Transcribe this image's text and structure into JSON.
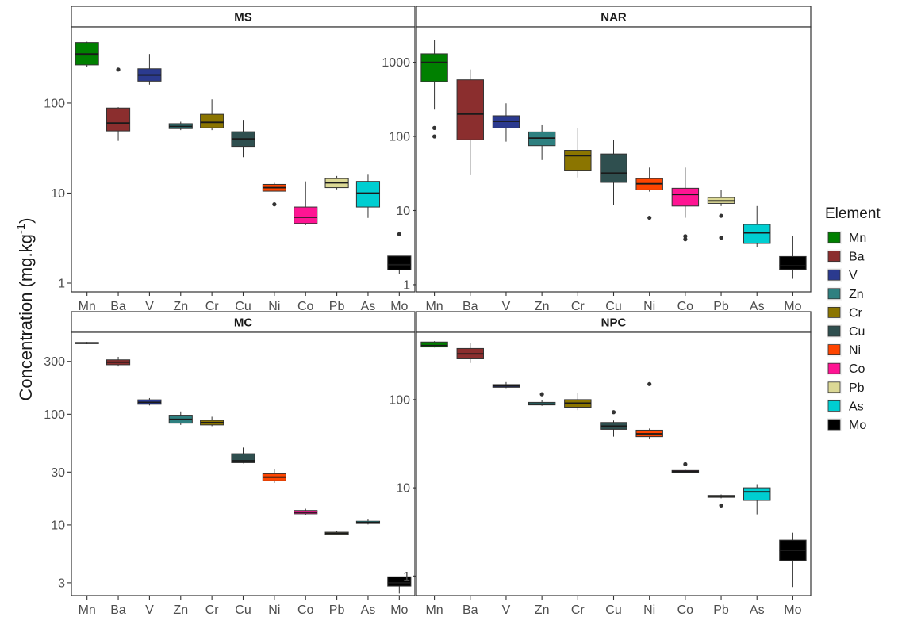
{
  "chart_data": {
    "type": "boxplot",
    "ylabel": {
      "main": "Concentration (mg.kg",
      "sup": "-1",
      "close": ")"
    },
    "yscale": "log10",
    "categories": [
      "Mn",
      "Ba",
      "V",
      "Zn",
      "Cr",
      "Cu",
      "Ni",
      "Co",
      "Pb",
      "As",
      "Mo"
    ],
    "legend": {
      "title": "Element",
      "placement": "right",
      "items": [
        {
          "label": "Mn",
          "color": "#008000"
        },
        {
          "label": "Ba",
          "color": "#8b2e2e"
        },
        {
          "label": "V",
          "color": "#2b3a8f"
        },
        {
          "label": "Zn",
          "color": "#2e8080"
        },
        {
          "label": "Cr",
          "color": "#8b7500"
        },
        {
          "label": "Cu",
          "color": "#2f4f4f"
        },
        {
          "label": "Ni",
          "color": "#ff4500"
        },
        {
          "label": "Co",
          "color": "#ff1493"
        },
        {
          "label": "Pb",
          "color": "#dbd895"
        },
        {
          "label": "As",
          "color": "#00ced1"
        },
        {
          "label": "Mo",
          "color": "#000000"
        }
      ]
    },
    "panels": [
      {
        "title": "MS",
        "ylim": [
          0.8,
          700
        ],
        "yticks": [
          1,
          10,
          100
        ],
        "tick_labels": [
          "1",
          "10",
          "100"
        ],
        "boxes": [
          {
            "category": "Mn",
            "whisker_low": 250,
            "q1": 265,
            "median": 350,
            "q3": 470,
            "whisker_high": 480,
            "outliers": []
          },
          {
            "category": "Ba",
            "whisker_low": 38,
            "q1": 49,
            "median": 60,
            "q3": 88,
            "whisker_high": 90,
            "outliers": [
              235
            ]
          },
          {
            "category": "V",
            "whisker_low": 160,
            "q1": 175,
            "median": 205,
            "q3": 240,
            "whisker_high": 350,
            "outliers": []
          },
          {
            "category": "Zn",
            "whisker_low": 50,
            "q1": 52,
            "median": 55,
            "q3": 59,
            "whisker_high": 62,
            "outliers": []
          },
          {
            "category": "Cr",
            "whisker_low": 50,
            "q1": 53,
            "median": 61,
            "q3": 75,
            "whisker_high": 110,
            "outliers": []
          },
          {
            "category": "Cu",
            "whisker_low": 25,
            "q1": 33,
            "median": 40,
            "q3": 48,
            "whisker_high": 65,
            "outliers": []
          },
          {
            "category": "Ni",
            "whisker_low": 10.5,
            "q1": 10.5,
            "median": 11.5,
            "q3": 12.5,
            "whisker_high": 13,
            "outliers": [
              7.5
            ]
          },
          {
            "category": "Co",
            "whisker_low": 4.4,
            "q1": 4.6,
            "median": 5.4,
            "q3": 7.0,
            "whisker_high": 13.5,
            "outliers": []
          },
          {
            "category": "Pb",
            "whisker_low": 11,
            "q1": 11.5,
            "median": 13,
            "q3": 14.5,
            "whisker_high": 15.5,
            "outliers": []
          },
          {
            "category": "As",
            "whisker_low": 5.3,
            "q1": 7.0,
            "median": 10,
            "q3": 13.5,
            "whisker_high": 16,
            "outliers": []
          },
          {
            "category": "Mo",
            "whisker_low": 1.25,
            "q1": 1.4,
            "median": 1.6,
            "q3": 2.0,
            "whisker_high": 2.0,
            "outliers": [
              3.5
            ]
          }
        ]
      },
      {
        "title": "NAR",
        "ylim": [
          0.8,
          3000
        ],
        "yticks": [
          1,
          10,
          100,
          1000
        ],
        "tick_labels": [
          "1",
          "10",
          "100",
          "1000"
        ],
        "boxes": [
          {
            "category": "Mn",
            "whisker_low": 230,
            "q1": 550,
            "median": 1000,
            "q3": 1300,
            "whisker_high": 2000,
            "outliers": [
              130,
              100
            ]
          },
          {
            "category": "Ba",
            "whisker_low": 30,
            "q1": 90,
            "median": 200,
            "q3": 580,
            "whisker_high": 800,
            "outliers": []
          },
          {
            "category": "V",
            "whisker_low": 85,
            "q1": 130,
            "median": 160,
            "q3": 190,
            "whisker_high": 280,
            "outliers": []
          },
          {
            "category": "Zn",
            "whisker_low": 48,
            "q1": 75,
            "median": 95,
            "q3": 115,
            "whisker_high": 145,
            "outliers": []
          },
          {
            "category": "Cr",
            "whisker_low": 28,
            "q1": 35,
            "median": 55,
            "q3": 65,
            "whisker_high": 130,
            "outliers": []
          },
          {
            "category": "Cu",
            "whisker_low": 12,
            "q1": 24,
            "median": 32,
            "q3": 58,
            "whisker_high": 90,
            "outliers": []
          },
          {
            "category": "Ni",
            "whisker_low": 18,
            "q1": 19,
            "median": 23,
            "q3": 27,
            "whisker_high": 38,
            "outliers": [
              8
            ]
          },
          {
            "category": "Co",
            "whisker_low": 8,
            "q1": 11.5,
            "median": 16.5,
            "q3": 20,
            "whisker_high": 38,
            "outliers": [
              4.5,
              4.1
            ]
          },
          {
            "category": "Pb",
            "whisker_low": 11.5,
            "q1": 12.5,
            "median": 13.5,
            "q3": 15,
            "whisker_high": 19,
            "outliers": [
              8.5,
              4.3
            ]
          },
          {
            "category": "As",
            "whisker_low": 3.2,
            "q1": 3.6,
            "median": 5,
            "q3": 6.5,
            "whisker_high": 11.5,
            "outliers": []
          },
          {
            "category": "Mo",
            "whisker_low": 1.2,
            "q1": 1.6,
            "median": 1.8,
            "q3": 2.4,
            "whisker_high": 4.5,
            "outliers": []
          }
        ]
      },
      {
        "title": "MC",
        "ylim": [
          2.3,
          550
        ],
        "yticks": [
          3,
          10,
          30,
          100,
          300
        ],
        "tick_labels": [
          "3",
          "10",
          "30",
          "100",
          "300"
        ],
        "boxes": [
          {
            "category": "Mn",
            "whisker_low": 430,
            "q1": 435,
            "median": 440,
            "q3": 445,
            "whisker_high": 450,
            "outliers": []
          },
          {
            "category": "Ba",
            "whisker_low": 270,
            "q1": 280,
            "median": 295,
            "q3": 310,
            "whisker_high": 330,
            "outliers": []
          },
          {
            "category": "V",
            "whisker_low": 120,
            "q1": 123,
            "median": 128,
            "q3": 135,
            "whisker_high": 140,
            "outliers": []
          },
          {
            "category": "Zn",
            "whisker_low": 80,
            "q1": 83,
            "median": 90,
            "q3": 98,
            "whisker_high": 106,
            "outliers": []
          },
          {
            "category": "Cr",
            "whisker_low": 78,
            "q1": 80,
            "median": 84,
            "q3": 88,
            "whisker_high": 95,
            "outliers": []
          },
          {
            "category": "Cu",
            "whisker_low": 36,
            "q1": 36.5,
            "median": 38,
            "q3": 44,
            "whisker_high": 50,
            "outliers": []
          },
          {
            "category": "Ni",
            "whisker_low": 24,
            "q1": 25,
            "median": 27,
            "q3": 29,
            "whisker_high": 32,
            "outliers": []
          },
          {
            "category": "Co",
            "whisker_low": 12.3,
            "q1": 12.6,
            "median": 13,
            "q3": 13.5,
            "whisker_high": 14,
            "outliers": []
          },
          {
            "category": "Pb",
            "whisker_low": 8.1,
            "q1": 8.2,
            "median": 8.4,
            "q3": 8.6,
            "whisker_high": 8.8,
            "outliers": []
          },
          {
            "category": "As",
            "whisker_low": 10.1,
            "q1": 10.3,
            "median": 10.5,
            "q3": 10.8,
            "whisker_high": 11.2,
            "outliers": []
          },
          {
            "category": "Mo",
            "whisker_low": 2.4,
            "q1": 2.8,
            "median": 3.0,
            "q3": 3.4,
            "whisker_high": 3.4,
            "outliers": []
          }
        ]
      },
      {
        "title": "NPC",
        "ylim": [
          0.6,
          580
        ],
        "yticks": [
          1,
          10,
          100
        ],
        "tick_labels": [
          "1",
          "10",
          "100"
        ],
        "boxes": [
          {
            "category": "Mn",
            "whisker_low": 390,
            "q1": 395,
            "median": 410,
            "q3": 450,
            "whisker_high": 460,
            "outliers": []
          },
          {
            "category": "Ba",
            "whisker_low": 260,
            "q1": 290,
            "median": 330,
            "q3": 380,
            "whisker_high": 440,
            "outliers": []
          },
          {
            "category": "V",
            "whisker_low": 135,
            "q1": 138,
            "median": 143,
            "q3": 148,
            "whisker_high": 158,
            "outliers": []
          },
          {
            "category": "Zn",
            "whisker_low": 85,
            "q1": 87,
            "median": 89,
            "q3": 93,
            "whisker_high": 98,
            "outliers": [
              115
            ]
          },
          {
            "category": "Cr",
            "whisker_low": 76,
            "q1": 82,
            "median": 91,
            "q3": 100,
            "whisker_high": 120,
            "outliers": []
          },
          {
            "category": "Cu",
            "whisker_low": 38,
            "q1": 46,
            "median": 50,
            "q3": 55,
            "whisker_high": 58,
            "outliers": [
              72
            ]
          },
          {
            "category": "Ni",
            "whisker_low": 36,
            "q1": 38,
            "median": 41,
            "q3": 45,
            "whisker_high": 47,
            "outliers": [
              150
            ]
          },
          {
            "category": "Co",
            "whisker_low": 14.8,
            "q1": 15,
            "median": 15.3,
            "q3": 15.7,
            "whisker_high": 16,
            "outliers": [
              18.5
            ]
          },
          {
            "category": "Pb",
            "whisker_low": 7.6,
            "q1": 7.8,
            "median": 8.0,
            "q3": 8.2,
            "whisker_high": 8.4,
            "outliers": [
              6.3
            ]
          },
          {
            "category": "As",
            "whisker_low": 5,
            "q1": 7.2,
            "median": 9,
            "q3": 10,
            "whisker_high": 11,
            "outliers": []
          },
          {
            "category": "Mo",
            "whisker_low": 0.75,
            "q1": 1.5,
            "median": 1.95,
            "q3": 2.55,
            "whisker_high": 3.1,
            "outliers": []
          }
        ]
      }
    ]
  }
}
